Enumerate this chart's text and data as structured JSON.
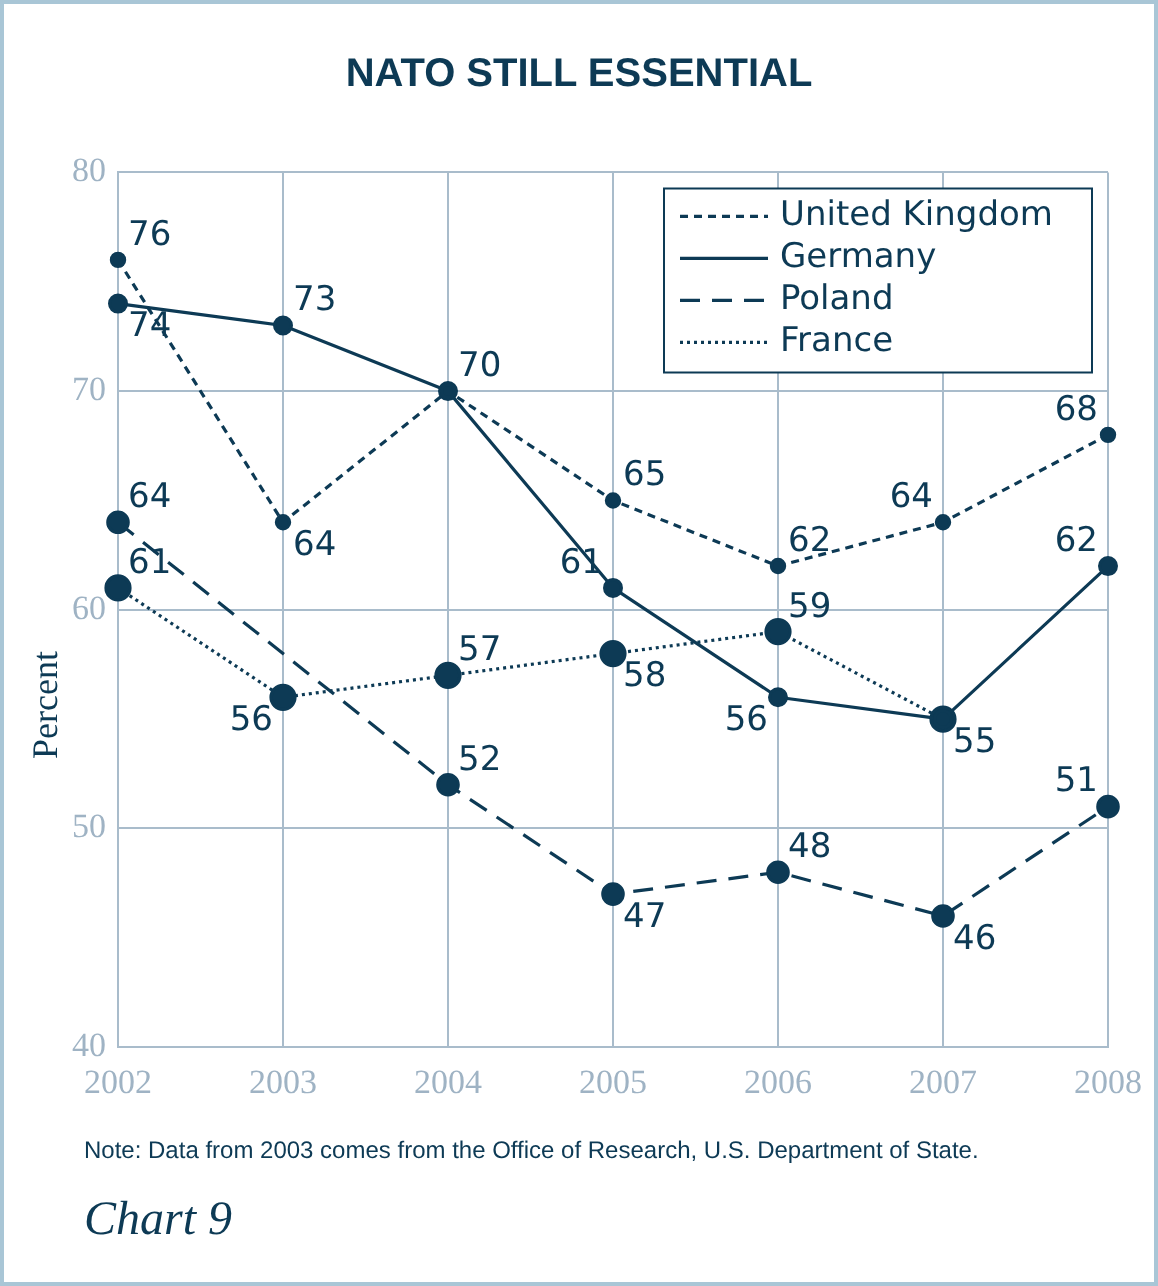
{
  "chart_data": {
    "type": "line",
    "title": "NATO STILL ESSENTIAL",
    "ylabel": "Percent",
    "categories": [
      "2002",
      "2003",
      "2004",
      "2005",
      "2006",
      "2007",
      "2008"
    ],
    "series": [
      {
        "name": "United Kingdom",
        "color": "#0d3a55",
        "line_style": "dashed",
        "values": [
          76,
          64,
          70,
          65,
          62,
          64,
          68
        ],
        "value_labels": [
          "76",
          "64",
          "70",
          "65",
          "62",
          "64",
          "68"
        ]
      },
      {
        "name": "Germany",
        "color": "#0d3a55",
        "line_style": "solid",
        "values": [
          74,
          73,
          70,
          61,
          56,
          55,
          62
        ],
        "value_labels": [
          "74",
          "73",
          null,
          "61",
          "56",
          "55",
          "62"
        ]
      },
      {
        "name": "Poland",
        "color": "#0d3a55",
        "line_style": "longdash",
        "values": [
          64,
          null,
          52,
          47,
          48,
          46,
          51
        ],
        "value_labels": [
          "64",
          null,
          "52",
          "47",
          "48",
          "46",
          "51"
        ]
      },
      {
        "name": "France",
        "color": "#0d3a55",
        "line_style": "dotted",
        "values": [
          61,
          56,
          57,
          58,
          59,
          55,
          null
        ],
        "value_labels": [
          "61",
          "56",
          "57",
          "58",
          "59",
          null,
          null
        ]
      }
    ],
    "ylim": [
      40,
      80
    ],
    "yticks": [
      40,
      50,
      60,
      70,
      80
    ],
    "grid": true,
    "legend": "top right",
    "marker": "circle",
    "annotations": [
      "Note: Data from 2003 comes from the Office of Research, U.S. Department of State.",
      "Chart 9"
    ]
  }
}
